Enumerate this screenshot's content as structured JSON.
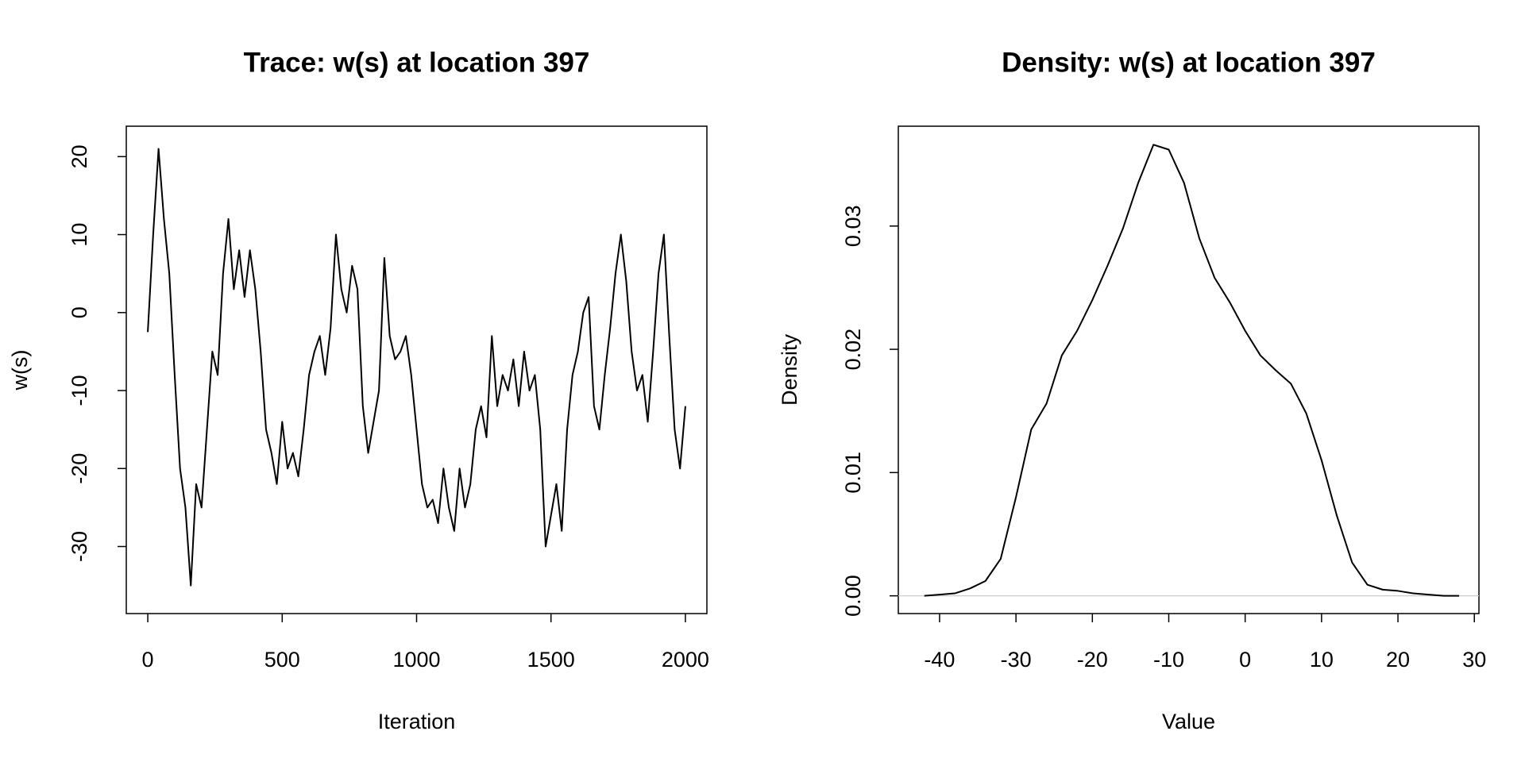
{
  "chart_data": [
    {
      "type": "line",
      "title": "Trace: w(s) at location 397",
      "x_label": "Iteration",
      "y_label": "w(s)",
      "x": [
        0,
        20,
        40,
        60,
        80,
        100,
        120,
        140,
        160,
        180,
        200,
        220,
        240,
        260,
        280,
        300,
        320,
        340,
        360,
        380,
        400,
        420,
        440,
        460,
        480,
        500,
        520,
        540,
        560,
        580,
        600,
        620,
        640,
        660,
        680,
        700,
        720,
        740,
        760,
        780,
        800,
        820,
        840,
        860,
        880,
        900,
        920,
        940,
        960,
        980,
        1000,
        1020,
        1040,
        1060,
        1080,
        1100,
        1120,
        1140,
        1160,
        1180,
        1200,
        1220,
        1240,
        1260,
        1280,
        1300,
        1320,
        1340,
        1360,
        1380,
        1400,
        1420,
        1440,
        1460,
        1480,
        1500,
        1520,
        1540,
        1560,
        1580,
        1600,
        1620,
        1640,
        1660,
        1680,
        1700,
        1720,
        1740,
        1760,
        1780,
        1800,
        1820,
        1840,
        1860,
        1880,
        1900,
        1920,
        1940,
        1960,
        1980,
        2000
      ],
      "series": [
        {
          "name": "w(s)",
          "color": "#000000",
          "values": [
            -2.5,
            10,
            21,
            12,
            5,
            -8,
            -20,
            -25,
            -35,
            -22,
            -25,
            -15,
            -5,
            -8,
            5,
            12,
            3,
            8,
            2,
            8,
            3,
            -5,
            -15,
            -18,
            -22,
            -14,
            -20,
            -18,
            -21,
            -15,
            -8,
            -5,
            -3,
            -8,
            -2,
            10,
            3,
            0,
            6,
            3,
            -12,
            -18,
            -14,
            -10,
            7,
            -3,
            -6,
            -5,
            -3,
            -8,
            -15,
            -22,
            -25,
            -24,
            -27,
            -20,
            -25,
            -28,
            -20,
            -25,
            -22,
            -15,
            -12,
            -16,
            -3,
            -12,
            -8,
            -10,
            -6,
            -12,
            -5,
            -10,
            -8,
            -15,
            -30,
            -26,
            -22,
            -28,
            -15,
            -8,
            -5,
            0,
            2,
            -12,
            -15,
            -8,
            -2,
            5,
            10,
            4,
            -5,
            -10,
            -8,
            -14,
            -5,
            5,
            10,
            -3,
            -15,
            -20,
            -12
          ]
        }
      ],
      "xlim": [
        -80,
        2080
      ],
      "ylim": [
        -38.6,
        23.9
      ],
      "xticks": [
        0,
        500,
        1000,
        1500,
        2000
      ],
      "yticks": [
        -30,
        -20,
        -10,
        0,
        10,
        20
      ]
    },
    {
      "type": "line",
      "title": "Density: w(s) at location 397",
      "x_label": "Value",
      "y_label": "Density",
      "x": [
        -42,
        -40,
        -38,
        -36,
        -34,
        -32,
        -30,
        -28,
        -26,
        -24,
        -22,
        -20,
        -18,
        -16,
        -14,
        -12,
        -10,
        -8,
        -6,
        -4,
        -2,
        0,
        2,
        4,
        6,
        8,
        10,
        12,
        14,
        16,
        18,
        20,
        22,
        24,
        26,
        28
      ],
      "series": [
        {
          "name": "Density",
          "color": "#000000",
          "values": [
            0,
            0.0001,
            0.0002,
            0.0006,
            0.0012,
            0.003,
            0.008,
            0.0135,
            0.0156,
            0.0195,
            0.0215,
            0.024,
            0.0268,
            0.0298,
            0.0335,
            0.0366,
            0.0362,
            0.0335,
            0.029,
            0.0258,
            0.0238,
            0.0215,
            0.0195,
            0.0183,
            0.0172,
            0.0148,
            0.011,
            0.0065,
            0.0027,
            0.0009,
            0.0005,
            0.0004,
            0.0002,
            0.0001,
            0,
            0
          ]
        }
      ],
      "hline": 0,
      "hline_color": "#cccccc",
      "xlim": [
        -45.4,
        30.6
      ],
      "ylim": [
        -0.00144,
        0.0381
      ],
      "xticks": [
        -40,
        -30,
        -20,
        -10,
        0,
        10,
        20,
        30
      ],
      "yticks": [
        {
          "value": 0,
          "label": "0.00"
        },
        0.01,
        0.02,
        0.03
      ]
    }
  ]
}
